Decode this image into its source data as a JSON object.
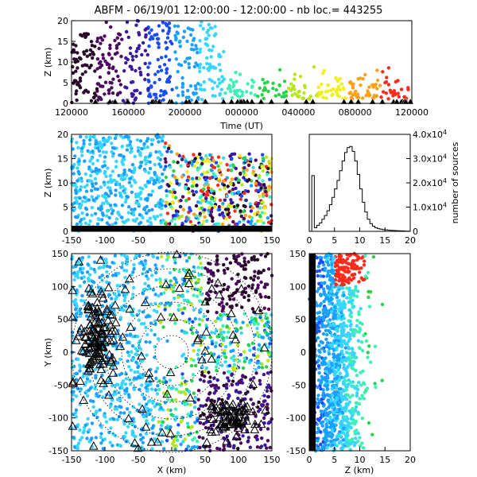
{
  "title": "ABFM - 06/19/01 12:00:00 - 12:00:00 - nb loc.= 443255",
  "colors": {
    "palette": [
      "#2a0a2a",
      "#4b0a5e",
      "#3a1aa0",
      "#1a4bff",
      "#1aa0ff",
      "#38d6ff",
      "#3df0b8",
      "#28d24a",
      "#b8e61a",
      "#f0f01a",
      "#ffa01a",
      "#ff2a1a"
    ]
  },
  "chart_data": [
    {
      "id": "time_height",
      "type": "scatter",
      "title": "ABFM - 06/19/01 12:00:00 - 12:00:00 - nb loc.= 443255",
      "xlabel": "Time (UT)",
      "ylabel": "Z (km)",
      "x_tick_labels": [
        "120000",
        "160000",
        "200000",
        "000000",
        "040000",
        "080000",
        "120000"
      ],
      "y_ticks": [
        0,
        5,
        10,
        15,
        20
      ],
      "ylim": [
        0,
        20
      ],
      "note_colors": "points colored by time"
    },
    {
      "id": "xz_projection",
      "type": "scatter",
      "xlabel": "",
      "ylabel": "Z (km)",
      "x_ticks": [
        -150,
        -100,
        -50,
        0,
        50,
        100,
        150
      ],
      "y_ticks": [
        0,
        5,
        10,
        15,
        20
      ],
      "xlim": [
        -150,
        150
      ],
      "ylim": [
        0,
        20
      ]
    },
    {
      "id": "height_histogram",
      "type": "line",
      "xlabel": "",
      "ylabel": "number of sources",
      "x_ticks": [
        0,
        5,
        10,
        15,
        20
      ],
      "y_tick_labels": [
        "0",
        "1.0x10^4",
        "2.0x10^4",
        "3.0x10^4",
        "4.0x10^4"
      ],
      "xlim": [
        0,
        20
      ],
      "ylim": [
        0,
        40000
      ],
      "x": [
        0,
        0.5,
        1,
        1.5,
        2,
        2.5,
        3,
        3.5,
        4,
        4.5,
        5,
        5.5,
        6,
        6.5,
        7,
        7.5,
        8,
        8.5,
        9,
        9.5,
        10,
        10.5,
        11,
        11.5,
        12,
        12.5,
        13,
        13.5,
        14,
        14.5,
        15,
        15.5,
        16,
        16.5,
        17,
        17.5,
        18,
        18.5,
        19,
        19.5
      ],
      "y": [
        0,
        23000,
        1500,
        2500,
        3500,
        5000,
        6500,
        8500,
        11000,
        14000,
        17500,
        21000,
        25000,
        29000,
        32500,
        34500,
        35000,
        33000,
        29000,
        23500,
        17500,
        12000,
        8000,
        5000,
        3200,
        2100,
        1500,
        1100,
        900,
        700,
        600,
        500,
        400,
        350,
        300,
        250,
        200,
        150,
        100,
        80
      ]
    },
    {
      "id": "xy_plan_view",
      "type": "scatter",
      "xlabel": "X (km)",
      "ylabel": "Y (km)",
      "x_ticks": [
        -150,
        -100,
        -50,
        0,
        50,
        100,
        150
      ],
      "y_ticks": [
        -150,
        -100,
        -50,
        0,
        50,
        100,
        150
      ],
      "xlim": [
        -150,
        150
      ],
      "ylim": [
        -150,
        150
      ],
      "range_rings_km": [
        25,
        50,
        75,
        100,
        125,
        150
      ]
    },
    {
      "id": "zy_projection",
      "type": "scatter",
      "xlabel": "Z (km)",
      "ylabel": "",
      "x_ticks": [
        0,
        5,
        10,
        15,
        20
      ],
      "y_ticks": [
        -150,
        -100,
        -50,
        0,
        50,
        100,
        150
      ],
      "xlim": [
        0,
        20
      ],
      "ylim": [
        -150,
        150
      ]
    }
  ]
}
